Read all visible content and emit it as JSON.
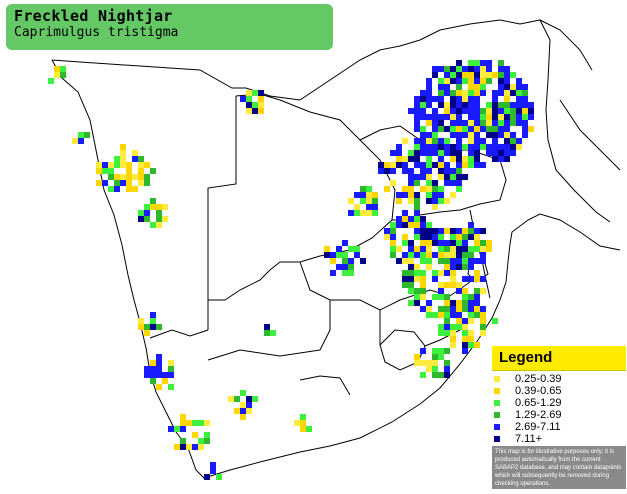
{
  "species": {
    "common_name": "Freckled Nightjar",
    "scientific_name": "Caprimulgus tristigma"
  },
  "legend": {
    "title": "Legend",
    "items": [
      {
        "label": "0.25-0.39",
        "color": "#ffeb3b"
      },
      {
        "label": "0.39-0.65",
        "color": "#ffd700"
      },
      {
        "label": "0.65-1.29",
        "color": "#3ef03e"
      },
      {
        "label": "1.29-2.69",
        "color": "#2eb82e"
      },
      {
        "label": "2.69-7.11",
        "color": "#1a1aff"
      },
      {
        "label": "7.11+",
        "color": "#000088"
      }
    ],
    "disclaimer": "This map is for illustrative purposes only; it is produced automatically from the current SABAP2 database, and may contain datapoints which will subsequently be removed during checking operations."
  },
  "colors": {
    "title_bg": "#64c864",
    "legend_header": "#ffeb00",
    "border": "#000000",
    "sea": "#ffffff"
  }
}
